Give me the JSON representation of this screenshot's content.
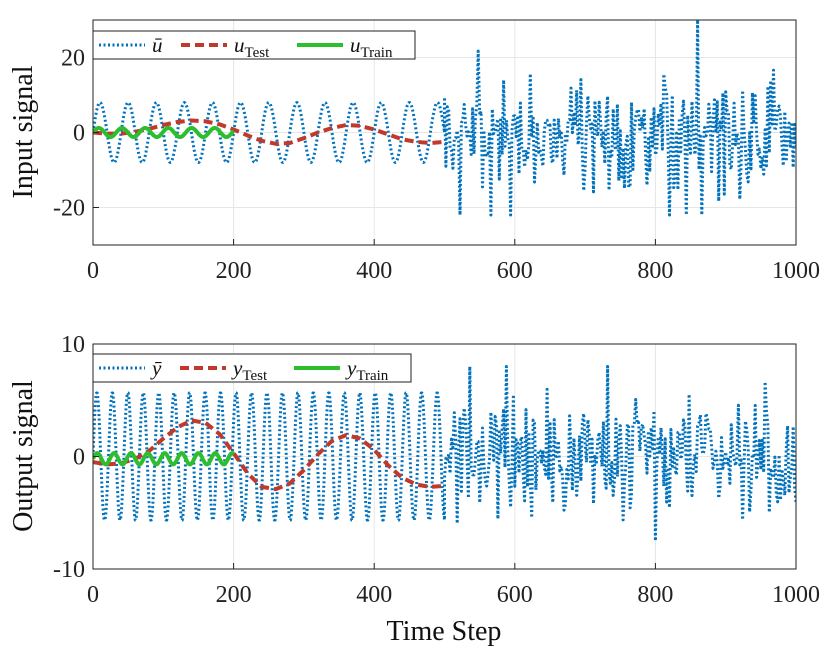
{
  "chart_data": [
    {
      "type": "line",
      "title": "",
      "xlabel": "",
      "ylabel": "Input signal",
      "xlim": [
        0,
        1000
      ],
      "ylim": [
        -30,
        30
      ],
      "xticks": [
        0,
        200,
        400,
        600,
        800,
        1000
      ],
      "yticks": [
        -20,
        0,
        20
      ],
      "xtick_labels": [
        "0",
        "200",
        "400",
        "600",
        "800",
        "1000"
      ],
      "ytick_labels": [
        "-20",
        "0",
        "20"
      ],
      "grid": true,
      "legend_position": "top-left",
      "series": [
        {
          "name": "u-bar",
          "label_main": "ū",
          "label_sub": "",
          "color": "#0072BD",
          "style": "dotted",
          "description": "sinusoid amplitude ~8, period ~40 for steps 0-500; random values approximately -22 to 30 for steps 500-1000",
          "segments": [
            {
              "kind": "sine",
              "x_start": 0,
              "x_end": 500,
              "amplitude": 8,
              "period": 40,
              "offset": 0
            },
            {
              "kind": "noise",
              "x_start": 500,
              "x_end": 1000,
              "min": -22,
              "max": 30,
              "spread": 8,
              "seed": 7
            }
          ]
        },
        {
          "name": "u-test",
          "label_main": "u",
          "label_sub": "Test",
          "color": "#C0392B",
          "style": "dashed",
          "x": [
            0,
            20,
            40,
            60,
            80,
            100,
            120,
            140,
            160,
            180,
            200,
            220,
            240,
            260,
            280,
            300,
            320,
            340,
            360,
            380,
            400,
            420,
            440,
            460,
            480,
            500
          ],
          "y": [
            0,
            -0.3,
            -0.3,
            0.2,
            1.0,
            2.0,
            2.8,
            3.2,
            3.0,
            2.2,
            0.8,
            -0.8,
            -2.2,
            -3.0,
            -2.8,
            -1.5,
            0,
            1.2,
            2.0,
            1.8,
            0.8,
            -0.5,
            -1.8,
            -2.5,
            -2.8,
            -2.5
          ]
        },
        {
          "name": "u-train",
          "label_main": "u",
          "label_sub": "Train",
          "color": "#2DBE2D",
          "style": "solid",
          "segments": [
            {
              "kind": "sine",
              "x_start": 0,
              "x_end": 200,
              "amplitude": 1.2,
              "period": 33,
              "offset": 0
            }
          ]
        }
      ]
    },
    {
      "type": "line",
      "title": "",
      "xlabel": "Time Step",
      "ylabel": "Output signal",
      "xlim": [
        0,
        1000
      ],
      "ylim": [
        -10,
        10
      ],
      "xticks": [
        0,
        200,
        400,
        600,
        800,
        1000
      ],
      "yticks": [
        -10,
        0,
        10
      ],
      "xtick_labels": [
        "0",
        "200",
        "400",
        "600",
        "800",
        "1000"
      ],
      "ytick_labels": [
        "-10",
        "0",
        "10"
      ],
      "grid": true,
      "legend_position": "top-left",
      "series": [
        {
          "name": "y-bar",
          "label_main": "ȳ",
          "label_sub": "",
          "color": "#0072BD",
          "style": "dotted",
          "description": "sinusoid amplitude ~5.7, period ~22 for steps 0-500; random values approximately -7.5 to 8 for steps 500-1000",
          "segments": [
            {
              "kind": "sine",
              "x_start": 0,
              "x_end": 500,
              "amplitude": 5.7,
              "period": 22,
              "offset": 0
            },
            {
              "kind": "noise",
              "x_start": 500,
              "x_end": 1000,
              "min": -7.5,
              "max": 8,
              "spread": 2.6,
              "seed": 13
            }
          ]
        },
        {
          "name": "y-test",
          "label_main": "y",
          "label_sub": "Test",
          "color": "#C0392B",
          "style": "dashed",
          "x": [
            0,
            20,
            40,
            60,
            80,
            100,
            120,
            140,
            160,
            180,
            200,
            220,
            240,
            260,
            280,
            300,
            320,
            340,
            360,
            380,
            400,
            420,
            440,
            460,
            480,
            500
          ],
          "y": [
            -0.5,
            -0.7,
            -0.6,
            -0.2,
            0.5,
            1.6,
            2.6,
            3.2,
            3.0,
            2.0,
            0.3,
            -1.5,
            -2.7,
            -2.9,
            -2.4,
            -1.2,
            0.2,
            1.4,
            1.9,
            1.6,
            0.6,
            -0.8,
            -1.9,
            -2.5,
            -2.7,
            -2.6
          ]
        },
        {
          "name": "y-train",
          "label_main": "y",
          "label_sub": "Train",
          "color": "#2DBE2D",
          "style": "solid",
          "segments": [
            {
              "kind": "sine",
              "x_start": 0,
              "x_end": 200,
              "amplitude": 0.5,
              "period": 24,
              "offset": -0.2
            }
          ]
        }
      ]
    }
  ]
}
